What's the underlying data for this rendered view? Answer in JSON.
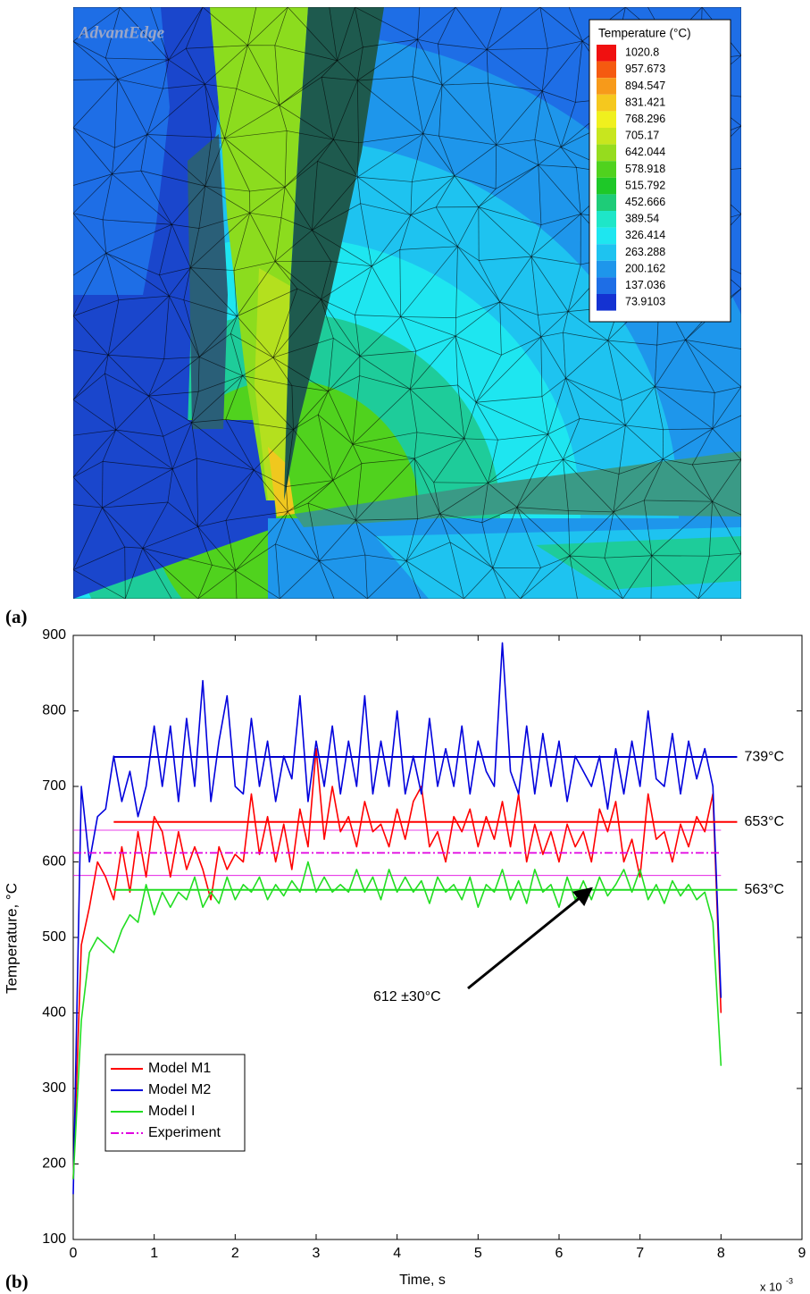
{
  "chart_data": [
    {
      "type": "contour",
      "panel_label": "(a)",
      "watermark": "AdvantEdge",
      "colorbar": {
        "title": "Temperature (°C)",
        "levels": [
          1020.8,
          957.673,
          894.547,
          831.421,
          768.296,
          705.17,
          642.044,
          578.918,
          515.792,
          452.666,
          389.54,
          326.414,
          263.288,
          200.162,
          137.036,
          73.9103
        ],
        "colors": [
          "#f01010",
          "#f55a10",
          "#f79a1a",
          "#f5c81e",
          "#f0f01e",
          "#c8e61e",
          "#96dc1e",
          "#50d21e",
          "#1ec828",
          "#1ecc78",
          "#1ee6c8",
          "#1ee6f0",
          "#1ec3f0",
          "#1e96eb",
          "#1e6ee6",
          "#1432d2"
        ]
      }
    },
    {
      "type": "line",
      "panel_label": "(b)",
      "xlabel": "Time, s",
      "ylabel": "Temperature, °C",
      "x_scale": {
        "base": "x 10",
        "exponent": "-3"
      },
      "xlim": [
        0,
        9
      ],
      "xticks": [
        0,
        1,
        2,
        3,
        4,
        5,
        6,
        7,
        8,
        9
      ],
      "ylim": [
        100,
        900
      ],
      "yticks": [
        100,
        200,
        300,
        400,
        500,
        600,
        700,
        800,
        900
      ],
      "legend": "lower left",
      "x": [
        0,
        0.1,
        0.2,
        0.3,
        0.4,
        0.5,
        0.6,
        0.7,
        0.8,
        0.9,
        1,
        1.1,
        1.2,
        1.3,
        1.4,
        1.5,
        1.6,
        1.7,
        1.8,
        1.9,
        2,
        2.1,
        2.2,
        2.3,
        2.4,
        2.5,
        2.6,
        2.7,
        2.8,
        2.9,
        3,
        3.1,
        3.2,
        3.3,
        3.4,
        3.5,
        3.6,
        3.7,
        3.8,
        3.9,
        4,
        4.1,
        4.2,
        4.3,
        4.4,
        4.5,
        4.6,
        4.7,
        4.8,
        4.9,
        5,
        5.1,
        5.2,
        5.3,
        5.4,
        5.5,
        5.6,
        5.7,
        5.8,
        5.9,
        6,
        6.1,
        6.2,
        6.3,
        6.4,
        6.5,
        6.6,
        6.7,
        6.8,
        6.9,
        7,
        7.1,
        7.2,
        7.3,
        7.4,
        7.5,
        7.6,
        7.7,
        7.8,
        7.9,
        8
      ],
      "series": [
        {
          "name": "Model M1",
          "color": "#ff0000",
          "values": [
            180,
            490,
            540,
            600,
            580,
            550,
            620,
            560,
            640,
            580,
            660,
            640,
            580,
            640,
            590,
            620,
            590,
            550,
            620,
            590,
            610,
            600,
            690,
            610,
            660,
            600,
            650,
            590,
            670,
            620,
            750,
            630,
            700,
            640,
            660,
            620,
            680,
            640,
            650,
            620,
            670,
            630,
            680,
            700,
            620,
            640,
            600,
            660,
            640,
            670,
            620,
            660,
            630,
            680,
            620,
            690,
            600,
            650,
            610,
            640,
            600,
            650,
            620,
            640,
            600,
            670,
            640,
            680,
            600,
            630,
            580,
            690,
            630,
            640,
            600,
            650,
            620,
            660,
            640,
            690,
            400
          ]
        },
        {
          "name": "Model M2",
          "color": "#0000dd",
          "values": [
            160,
            700,
            600,
            660,
            670,
            740,
            680,
            720,
            660,
            700,
            780,
            700,
            780,
            680,
            790,
            700,
            840,
            680,
            760,
            820,
            700,
            690,
            790,
            700,
            760,
            680,
            740,
            710,
            820,
            680,
            760,
            700,
            780,
            690,
            760,
            700,
            820,
            690,
            760,
            700,
            800,
            690,
            740,
            690,
            790,
            700,
            750,
            700,
            780,
            690,
            760,
            720,
            700,
            890,
            720,
            690,
            780,
            690,
            770,
            700,
            760,
            680,
            740,
            720,
            700,
            740,
            670,
            750,
            690,
            760,
            700,
            800,
            710,
            700,
            770,
            690,
            760,
            710,
            750,
            700,
            420
          ]
        },
        {
          "name": "Model I",
          "color": "#22dd22",
          "values": [
            180,
            390,
            480,
            500,
            490,
            480,
            510,
            530,
            520,
            570,
            530,
            560,
            540,
            560,
            550,
            580,
            540,
            560,
            545,
            580,
            550,
            570,
            560,
            580,
            550,
            570,
            555,
            575,
            560,
            600,
            560,
            580,
            560,
            570,
            560,
            590,
            560,
            580,
            550,
            590,
            560,
            580,
            560,
            575,
            545,
            580,
            560,
            570,
            550,
            580,
            540,
            570,
            560,
            590,
            550,
            575,
            545,
            590,
            560,
            570,
            540,
            580,
            550,
            575,
            550,
            580,
            555,
            570,
            590,
            560,
            590,
            550,
            570,
            545,
            575,
            555,
            570,
            550,
            560,
            520,
            330
          ]
        }
      ],
      "experiment": {
        "name": "Experiment",
        "color": "#e000e0",
        "value": 612,
        "error": 30
      },
      "mean_span": [
        0.5,
        8.2
      ],
      "means": [
        {
          "value": 739,
          "label": "739°C",
          "color": "#0000cc"
        },
        {
          "value": 653,
          "label": "653°C",
          "color": "#ff0000"
        },
        {
          "value": 563,
          "label": "563°C",
          "color": "#22dd22"
        }
      ],
      "annotation": {
        "text": "612 ±30°C",
        "xy": [
          6.4,
          565
        ]
      }
    }
  ]
}
